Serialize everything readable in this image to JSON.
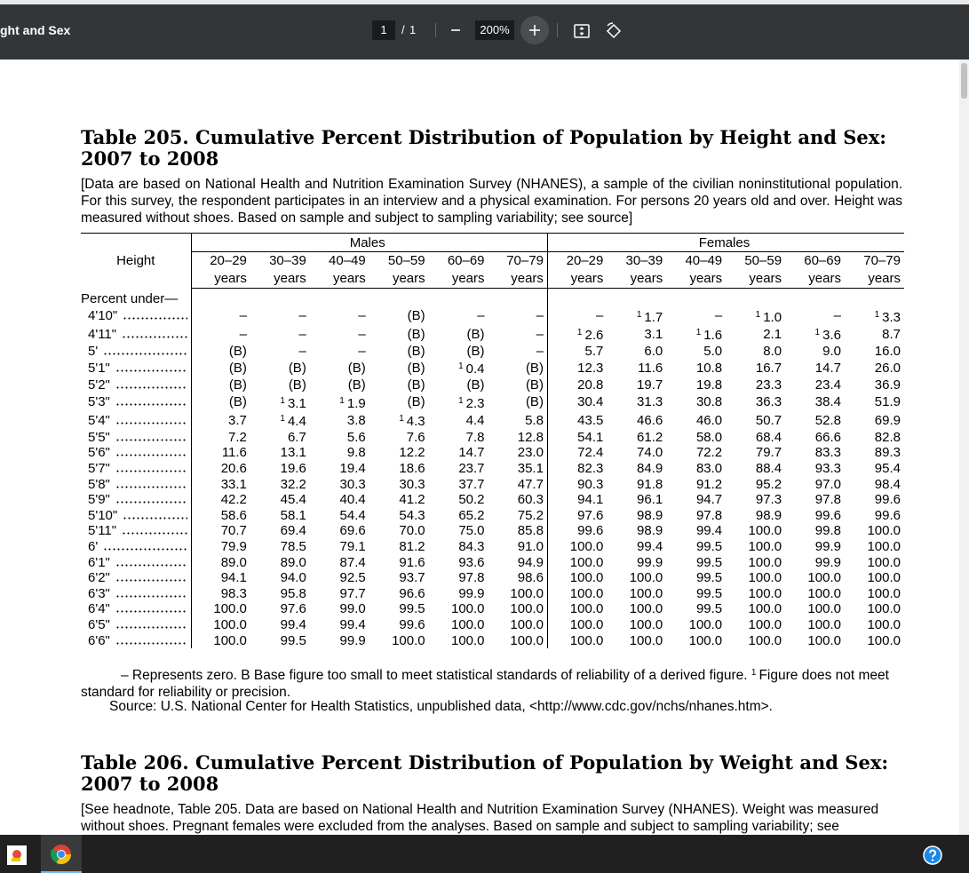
{
  "toolbar": {
    "title": "ght and Sex",
    "page": "1",
    "separator": "/",
    "pages": "1",
    "zoom": "200%"
  },
  "table205": {
    "title": "Table 205. Cumulative Percent Distribution of Population by Height and Sex: 2007 to 2008",
    "headnote": "[Data are based on National Health and Nutrition Examination Survey (NHANES),  a sample of the civilian noninstitutional population. For this survey, the respondent participates in an interview and a physical examination. For persons 20 years old and over. Height was measured without shoes.  Based on sample and subject to sampling variability; see source]",
    "stub_header": "Height",
    "groups": [
      "Males",
      "Females"
    ],
    "age_groups": [
      "20–29",
      "30–39",
      "40–49",
      "50–59",
      "60–69",
      "70–79"
    ],
    "years_label": "years",
    "section_label": "Percent under—",
    "row_groups": [
      [
        {
          "height": "4'10\"",
          "cells": [
            "–",
            "–",
            "–",
            "(B)",
            "–",
            "–",
            "–",
            {
              "sup": "1",
              "value": "1.7"
            },
            "–",
            {
              "sup": "1",
              "value": "1.0"
            },
            "–",
            {
              "sup": "1",
              "value": "3.3"
            }
          ]
        },
        {
          "height": "4'11\"",
          "cells": [
            "–",
            "–",
            "–",
            "(B)",
            "(B)",
            "–",
            {
              "sup": "1",
              "value": "2.6"
            },
            "3.1",
            {
              "sup": "1",
              "value": "1.6"
            },
            "2.1",
            {
              "sup": "1",
              "value": "3.6"
            },
            "8.7"
          ]
        },
        {
          "height": "5'",
          "cells": [
            "(B)",
            "–",
            "–",
            "(B)",
            "(B)",
            "–",
            "5.7",
            "6.0",
            "5.0",
            "8.0",
            "9.0",
            "16.0"
          ]
        }
      ],
      [
        {
          "height": "5'1\"",
          "cells": [
            "(B)",
            "(B)",
            "(B)",
            "(B)",
            {
              "sup": "1",
              "value": "0.4"
            },
            "(B)",
            "12.3",
            "11.6",
            "10.8",
            "16.7",
            "14.7",
            "26.0"
          ]
        },
        {
          "height": "5'2\"",
          "cells": [
            "(B)",
            "(B)",
            "(B)",
            "(B)",
            "(B)",
            "(B)",
            "20.8",
            "19.7",
            "19.8",
            "23.3",
            "23.4",
            "36.9"
          ]
        },
        {
          "height": "5'3\"",
          "cells": [
            "(B)",
            {
              "sup": "1",
              "value": "3.1"
            },
            {
              "sup": "1",
              "value": "1.9"
            },
            "(B)",
            {
              "sup": "1",
              "value": "2.3"
            },
            "(B)",
            "30.4",
            "31.3",
            "30.8",
            "36.3",
            "38.4",
            "51.9"
          ]
        },
        {
          "height": "5'4\"",
          "cells": [
            "3.7",
            {
              "sup": "1",
              "value": "4.4"
            },
            "3.8",
            {
              "sup": "1",
              "value": "4.3"
            },
            "4.4",
            "5.8",
            "43.5",
            "46.6",
            "46.0",
            "50.7",
            "52.8",
            "69.9"
          ]
        },
        {
          "height": "5'5\"",
          "cells": [
            "7.2",
            "6.7",
            "5.6",
            "7.6",
            "7.8",
            "12.8",
            "54.1",
            "61.2",
            "58.0",
            "68.4",
            "66.6",
            "82.8"
          ]
        },
        {
          "height": "5'6\"",
          "cells": [
            "11.6",
            "13.1",
            "9.8",
            "12.2",
            "14.7",
            "23.0",
            "72.4",
            "74.0",
            "72.2",
            "79.7",
            "83.3",
            "89.3"
          ]
        }
      ],
      [
        {
          "height": "5'7\"",
          "cells": [
            "20.6",
            "19.6",
            "19.4",
            "18.6",
            "23.7",
            "35.1",
            "82.3",
            "84.9",
            "83.0",
            "88.4",
            "93.3",
            "95.4"
          ]
        },
        {
          "height": "5'8\"",
          "cells": [
            "33.1",
            "32.2",
            "30.3",
            "30.3",
            "37.7",
            "47.7",
            "90.3",
            "91.8",
            "91.2",
            "95.2",
            "97.0",
            "98.4"
          ]
        },
        {
          "height": "5'9\"",
          "cells": [
            "42.2",
            "45.4",
            "40.4",
            "41.2",
            "50.2",
            "60.3",
            "94.1",
            "96.1",
            "94.7",
            "97.3",
            "97.8",
            "99.6"
          ]
        },
        {
          "height": "5'10\"",
          "cells": [
            "58.6",
            "58.1",
            "54.4",
            "54.3",
            "65.2",
            "75.2",
            "97.6",
            "98.9",
            "97.8",
            "98.9",
            "99.6",
            "99.6"
          ]
        },
        {
          "height": "5'11\"",
          "cells": [
            "70.7",
            "69.4",
            "69.6",
            "70.0",
            "75.0",
            "85.8",
            "99.6",
            "98.9",
            "99.4",
            "100.0",
            "99.8",
            "100.0"
          ]
        },
        {
          "height": "6'",
          "cells": [
            "79.9",
            "78.5",
            "79.1",
            "81.2",
            "84.3",
            "91.0",
            "100.0",
            "99.4",
            "99.5",
            "100.0",
            "99.9",
            "100.0"
          ]
        }
      ],
      [
        {
          "height": "6'1\"",
          "cells": [
            "89.0",
            "89.0",
            "87.4",
            "91.6",
            "93.6",
            "94.9",
            "100.0",
            "99.9",
            "99.5",
            "100.0",
            "99.9",
            "100.0"
          ]
        },
        {
          "height": "6'2\"",
          "cells": [
            "94.1",
            "94.0",
            "92.5",
            "93.7",
            "97.8",
            "98.6",
            "100.0",
            "100.0",
            "99.5",
            "100.0",
            "100.0",
            "100.0"
          ]
        },
        {
          "height": "6'3\"",
          "cells": [
            "98.3",
            "95.8",
            "97.7",
            "96.6",
            "99.9",
            "100.0",
            "100.0",
            "100.0",
            "99.5",
            "100.0",
            "100.0",
            "100.0"
          ]
        },
        {
          "height": "6'4\"",
          "cells": [
            "100.0",
            "97.6",
            "99.0",
            "99.5",
            "100.0",
            "100.0",
            "100.0",
            "100.0",
            "99.5",
            "100.0",
            "100.0",
            "100.0"
          ]
        },
        {
          "height": "6'5\"",
          "cells": [
            "100.0",
            "99.4",
            "99.4",
            "99.6",
            "100.0",
            "100.0",
            "100.0",
            "100.0",
            "100.0",
            "100.0",
            "100.0",
            "100.0"
          ]
        },
        {
          "height": "6'6\"",
          "cells": [
            "100.0",
            "99.5",
            "99.9",
            "100.0",
            "100.0",
            "100.0",
            "100.0",
            "100.0",
            "100.0",
            "100.0",
            "100.0",
            "100.0"
          ]
        }
      ]
    ],
    "footnote": {
      "text1": "– Represents zero. B Base figure too small to meet statistical standards of reliability of a derived figure.",
      "sup": "1",
      "text2": "Figure does not meet standard for reliability or precision."
    },
    "source": "Source: U.S. National Center for Health Statistics, unpublished data, <http://www.cdc.gov/nchs/nhanes.htm>."
  },
  "table206": {
    "title": "Table 206. Cumulative Percent Distribution of Population by Weight and Sex: 2007 to 2008",
    "headnote": "[See headnote, Table 205. Data are based on National Health and Nutrition Examination Survey (NHANES). Weight was measured without shoes. Pregnant females were excluded from the analyses. Based on sample and subject to sampling variability; see"
  }
}
